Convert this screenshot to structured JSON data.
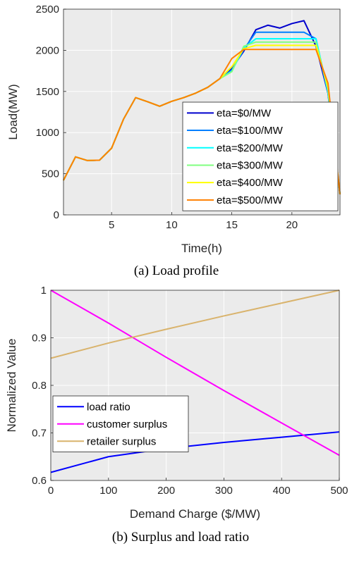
{
  "chart_data": [
    {
      "type": "line",
      "caption": "(a) Load profile",
      "xlabel": "Time(h)",
      "ylabel": "Load(MW)",
      "xlim": [
        1,
        24
      ],
      "ylim": [
        0,
        2500
      ],
      "xticks": [
        5,
        10,
        15,
        20
      ],
      "yticks": [
        0,
        500,
        1000,
        1500,
        2000,
        2500
      ],
      "grid": true,
      "legend_position": "lower-right",
      "x": [
        1,
        2,
        3,
        4,
        5,
        6,
        7,
        8,
        9,
        10,
        11,
        12,
        13,
        14,
        15,
        16,
        17,
        18,
        19,
        20,
        21,
        22,
        23,
        24
      ],
      "series": [
        {
          "name": "eta=$0/MW",
          "color": "#0000cd",
          "values": [
            420,
            705,
            660,
            665,
            810,
            1165,
            1425,
            1375,
            1320,
            1380,
            1425,
            1480,
            1550,
            1655,
            1780,
            1990,
            2250,
            2305,
            2270,
            2325,
            2360,
            2050,
            1480,
            250
          ]
        },
        {
          "name": "eta=$100/MW",
          "color": "#0080ff",
          "values": [
            420,
            705,
            660,
            665,
            810,
            1165,
            1425,
            1375,
            1320,
            1380,
            1425,
            1480,
            1550,
            1655,
            1760,
            2010,
            2220,
            2220,
            2220,
            2220,
            2220,
            2140,
            1480,
            250
          ]
        },
        {
          "name": "eta=$200/MW",
          "color": "#00ffff",
          "values": [
            420,
            705,
            660,
            665,
            810,
            1165,
            1425,
            1375,
            1320,
            1380,
            1425,
            1480,
            1550,
            1655,
            1745,
            2030,
            2140,
            2140,
            2140,
            2140,
            2140,
            2140,
            1500,
            250
          ]
        },
        {
          "name": "eta=$300/MW",
          "color": "#80ff80",
          "values": [
            420,
            705,
            660,
            665,
            810,
            1165,
            1425,
            1375,
            1320,
            1380,
            1425,
            1480,
            1550,
            1655,
            1740,
            2050,
            2100,
            2100,
            2100,
            2100,
            2100,
            2100,
            1520,
            250
          ]
        },
        {
          "name": "eta=$400/MW",
          "color": "#ffff00",
          "values": [
            420,
            705,
            660,
            665,
            810,
            1165,
            1425,
            1375,
            1320,
            1380,
            1425,
            1480,
            1550,
            1655,
            1800,
            2020,
            2060,
            2060,
            2060,
            2060,
            2060,
            2060,
            1560,
            250
          ]
        },
        {
          "name": "eta=$500/MW",
          "color": "#ff8000",
          "values": [
            420,
            705,
            660,
            665,
            810,
            1165,
            1425,
            1375,
            1320,
            1380,
            1425,
            1480,
            1550,
            1655,
            1900,
            2010,
            2010,
            2010,
            2010,
            2010,
            2010,
            2010,
            1600,
            250
          ]
        }
      ]
    },
    {
      "type": "line",
      "caption": "(b) Surplus and load ratio",
      "xlabel": "Demand Charge ($/MW)",
      "ylabel": "Normalized Value",
      "xlim": [
        0,
        500
      ],
      "ylim": [
        0.6,
        1
      ],
      "xticks": [
        0,
        100,
        200,
        300,
        400,
        500
      ],
      "yticks": [
        0.6,
        0.7,
        0.8,
        0.9,
        1
      ],
      "grid": true,
      "legend_position": "lower-left",
      "x": [
        0,
        100,
        200,
        300,
        400,
        500
      ],
      "series": [
        {
          "name": "load ratio",
          "color": "#0000ff",
          "values": [
            0.617,
            0.65,
            0.667,
            0.68,
            0.691,
            0.702
          ]
        },
        {
          "name": "customer surplus",
          "color": "#ff00ff",
          "values": [
            1.0,
            0.931,
            0.859,
            0.789,
            0.721,
            0.653
          ]
        },
        {
          "name": "retailer surplus",
          "color": "#d9b36c",
          "values": [
            0.857,
            0.889,
            0.918,
            0.946,
            0.973,
            1.0
          ]
        }
      ]
    }
  ]
}
